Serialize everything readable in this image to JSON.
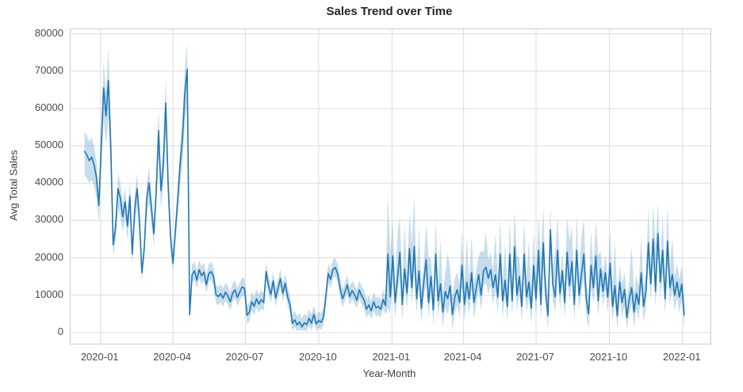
{
  "chart_data": {
    "type": "line",
    "title": "Sales Trend over Time",
    "xlabel": "Year-Month",
    "ylabel": "Avg Total Sales",
    "legend": null,
    "grid": true,
    "grid_color": "#dcdcdc",
    "spine_color": "#cccccc",
    "line_color": "#1f77b4",
    "band_opacity": 0.25,
    "x_start_date": "2019-12-12",
    "x_step_days": 3,
    "x_tick_labels": [
      "2020-01",
      "2020-04",
      "2020-07",
      "2020-10",
      "2021-01",
      "2021-04",
      "2021-07",
      "2021-10",
      "2022-01"
    ],
    "x_tick_day_offsets": [
      20,
      111,
      202,
      294,
      386,
      476,
      567,
      659,
      751
    ],
    "y_ticks": [
      0,
      10000,
      20000,
      30000,
      40000,
      50000,
      60000,
      70000,
      80000
    ],
    "xlim_days": [
      -17.5,
      786
    ],
    "ylim": [
      -3000,
      81200
    ],
    "values": [
      48500,
      47500,
      46000,
      47000,
      45000,
      41500,
      34000,
      50000,
      65500,
      58000,
      67500,
      50000,
      23500,
      28000,
      38500,
      36000,
      31000,
      35000,
      28500,
      36500,
      21000,
      33000,
      38500,
      30000,
      16000,
      22500,
      35500,
      40000,
      33500,
      26500,
      38000,
      54000,
      38000,
      45000,
      61500,
      40000,
      26000,
      18500,
      27000,
      35500,
      45000,
      52000,
      64000,
      70500,
      4800,
      15500,
      16500,
      14000,
      16800,
      15200,
      16200,
      12800,
      15800,
      16300,
      15000,
      10200,
      9600,
      10400,
      9200,
      10800,
      9800,
      8200,
      10600,
      11400,
      9400,
      10800,
      12200,
      11800,
      4600,
      5400,
      8200,
      7000,
      9000,
      7600,
      8800,
      8000,
      16300,
      12500,
      10200,
      13800,
      9200,
      11800,
      14400,
      10500,
      13200,
      9500,
      7500,
      2400,
      3400,
      2000,
      2800,
      1500,
      2600,
      2100,
      3800,
      2500,
      4800,
      2300,
      3200,
      2700,
      4000,
      9500,
      15800,
      14200,
      16900,
      17400,
      15600,
      11800,
      9000,
      10800,
      12800,
      9600,
      11200,
      10200,
      8600,
      11400,
      9800,
      8800,
      6200,
      7400,
      5800,
      8200,
      6600,
      7000,
      6200,
      8800,
      7200,
      21000,
      9500,
      20500,
      8000,
      14500,
      21500,
      7500,
      17000,
      10500,
      22500,
      12000,
      23000,
      9000,
      16500,
      6500,
      13500,
      19500,
      8000,
      15000,
      6000,
      21000,
      8500,
      13000,
      5500,
      11000,
      9000,
      12500,
      4800,
      9500,
      11500,
      8000,
      18000,
      7500,
      13500,
      9000,
      16000,
      8000,
      12000,
      15500,
      10000,
      16500,
      17500,
      14500,
      16800,
      12000,
      15500,
      9500,
      21000,
      8500,
      14000,
      7000,
      21000,
      8500,
      23000,
      10000,
      15000,
      7000,
      21000,
      9500,
      13500,
      6500,
      18000,
      9000,
      22000,
      7500,
      24000,
      11000,
      4500,
      27500,
      13000,
      9500,
      22000,
      10500,
      16500,
      8000,
      21500,
      12500,
      19000,
      7500,
      22000,
      10000,
      15500,
      21000,
      9000,
      5000,
      18000,
      12000,
      20500,
      8500,
      17000,
      11000,
      16000,
      9500,
      18500,
      7000,
      12500,
      4500,
      13500,
      8000,
      11500,
      4000,
      9000,
      12000,
      5500,
      10500,
      7500,
      16000,
      7000,
      11000,
      24000,
      13000,
      25000,
      11000,
      26500,
      13500,
      22000,
      9000,
      24500,
      12000,
      15500,
      10000,
      13500,
      9500,
      13000,
      4700
    ],
    "ci_low": [
      42200,
      41300,
      40000,
      40900,
      39200,
      36100,
      29600,
      43500,
      57000,
      50500,
      57500,
      43500,
      20400,
      24400,
      33500,
      31300,
      27000,
      30500,
      24800,
      31800,
      18300,
      28700,
      33500,
      26100,
      13900,
      19600,
      30900,
      34800,
      29100,
      23100,
      33100,
      47000,
      33100,
      39200,
      53500,
      34800,
      22600,
      16100,
      23500,
      30900,
      39200,
      45200,
      55700,
      62000,
      2500,
      13200,
      14200,
      11700,
      14500,
      12900,
      13900,
      10500,
      13500,
      14000,
      12700,
      7900,
      7300,
      8100,
      6900,
      8500,
      7500,
      5900,
      8300,
      9100,
      7100,
      8500,
      9900,
      9500,
      2300,
      3100,
      5900,
      4700,
      6700,
      5300,
      6500,
      5700,
      14000,
      10200,
      7900,
      11500,
      6900,
      9500,
      12100,
      8200,
      10900,
      7200,
      5200,
      400,
      1400,
      400,
      800,
      400,
      600,
      400,
      1800,
      500,
      2800,
      400,
      1200,
      700,
      2000,
      7200,
      13500,
      11900,
      14600,
      15100,
      13300,
      9500,
      6700,
      8500,
      10500,
      7300,
      8900,
      7900,
      6300,
      9100,
      7500,
      6500,
      3900,
      5100,
      3500,
      5900,
      4300,
      4700,
      3900,
      6500,
      4900,
      6500,
      5300,
      14000,
      3800,
      10300,
      15000,
      3300,
      12800,
      6300,
      16000,
      7800,
      16500,
      4800,
      12300,
      2300,
      9300,
      13000,
      3800,
      10800,
      1800,
      14500,
      4300,
      8800,
      1300,
      6800,
      4800,
      8300,
      800,
      5300,
      7300,
      3800,
      12000,
      3300,
      9300,
      4800,
      11800,
      3800,
      7800,
      11300,
      5800,
      12300,
      13300,
      10300,
      12600,
      7800,
      11300,
      5300,
      14500,
      4300,
      9800,
      2800,
      14500,
      4300,
      16500,
      5800,
      10800,
      2800,
      14500,
      5300,
      9300,
      2300,
      12000,
      4800,
      15500,
      3300,
      17500,
      6800,
      800,
      21000,
      8800,
      5300,
      15500,
      6300,
      12300,
      3800,
      15000,
      8300,
      13500,
      3300,
      15500,
      5800,
      11300,
      14500,
      4800,
      800,
      12000,
      7800,
      14000,
      4300,
      12800,
      6800,
      11800,
      5300,
      12500,
      2800,
      8300,
      800,
      9300,
      3800,
      7300,
      800,
      4800,
      7800,
      1300,
      6300,
      3300,
      11800,
      2800,
      6800,
      17500,
      8800,
      18500,
      6800,
      20000,
      9300,
      15500,
      4800,
      18000,
      7800,
      11300,
      5800,
      9300,
      5300,
      8800,
      800
    ],
    "ci_high": [
      53800,
      52700,
      51100,
      52200,
      50000,
      46100,
      37700,
      55500,
      72700,
      64400,
      76500,
      55500,
      26100,
      31100,
      42700,
      40000,
      34400,
      38900,
      31600,
      40500,
      23300,
      36600,
      42700,
      33300,
      17800,
      25000,
      39400,
      44400,
      37200,
      29400,
      42200,
      59900,
      42200,
      50000,
      68300,
      44400,
      28900,
      20500,
      30000,
      39400,
      50000,
      57700,
      71000,
      77500,
      7400,
      18100,
      19100,
      16600,
      19400,
      17800,
      18800,
      15400,
      18400,
      18900,
      17600,
      12800,
      12200,
      13000,
      11800,
      13400,
      12400,
      10800,
      13200,
      14000,
      12000,
      13400,
      14800,
      14400,
      7200,
      8000,
      10800,
      9600,
      11600,
      10200,
      11400,
      10600,
      18900,
      15100,
      12800,
      16400,
      11800,
      14400,
      17000,
      13100,
      15800,
      12100,
      10100,
      4800,
      5800,
      4400,
      5200,
      3900,
      5000,
      4500,
      6200,
      4900,
      7200,
      4700,
      5600,
      5100,
      6600,
      12100,
      18400,
      16800,
      19500,
      20000,
      18200,
      14400,
      11600,
      13400,
      15400,
      12200,
      13800,
      12800,
      11200,
      14000,
      12400,
      11400,
      8800,
      10000,
      8400,
      10800,
      9200,
      9600,
      8800,
      11400,
      9800,
      37000,
      21500,
      30000,
      12800,
      26500,
      31000,
      12300,
      29000,
      15300,
      32000,
      24000,
      36500,
      13800,
      28500,
      11300,
      18300,
      29000,
      20000,
      19800,
      10800,
      30500,
      13300,
      25000,
      10300,
      15800,
      21000,
      17300,
      9600,
      14300,
      16300,
      12800,
      27500,
      12300,
      25500,
      13800,
      26000,
      12800,
      16800,
      20300,
      22000,
      21300,
      27000,
      19300,
      21600,
      16800,
      26500,
      14300,
      30500,
      13300,
      24000,
      11800,
      30500,
      13300,
      32500,
      21000,
      19800,
      11800,
      30500,
      14300,
      25000,
      11300,
      27500,
      13800,
      31500,
      19500,
      33500,
      15800,
      9300,
      33500,
      17800,
      21500,
      31500,
      15300,
      21300,
      12800,
      31000,
      24500,
      28500,
      12300,
      31500,
      14800,
      26000,
      30500,
      13800,
      9800,
      27500,
      16800,
      30000,
      20500,
      21800,
      15800,
      21000,
      14300,
      28000,
      11800,
      24500,
      9300,
      18300,
      12800,
      16300,
      8800,
      13800,
      23500,
      10300,
      15300,
      12300,
      26000,
      11800,
      15800,
      33500,
      17800,
      34500,
      22500,
      35000,
      18300,
      31500,
      13800,
      34000,
      16800,
      25500,
      14800,
      18300,
      14300,
      17800,
      9500
    ]
  }
}
